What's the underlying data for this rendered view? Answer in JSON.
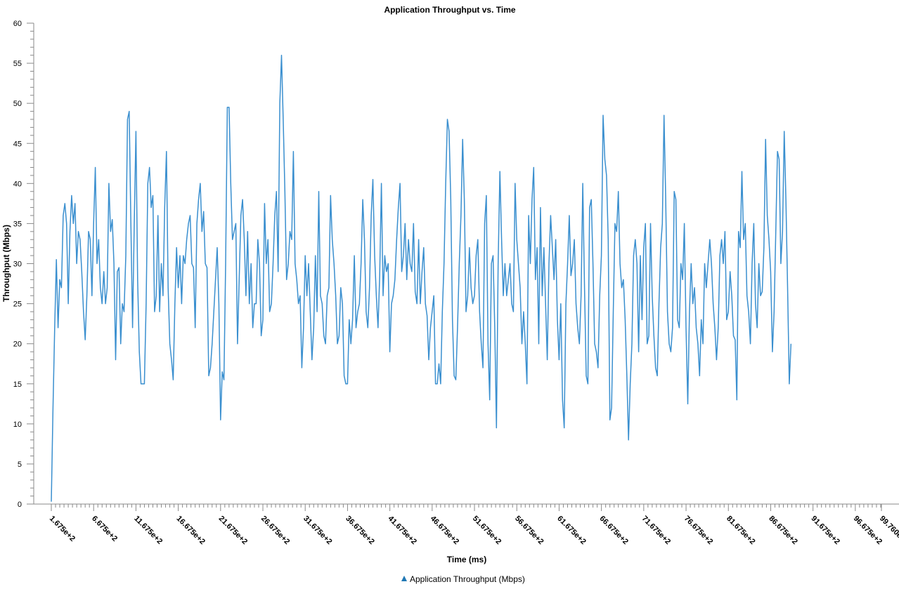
{
  "chart_data": {
    "type": "line",
    "title": "Application Throughput vs. Time",
    "xlabel": "Time (ms)",
    "ylabel": "Throughput (Mbps)",
    "ylim": [
      0,
      60
    ],
    "xlim": [
      167.5,
      9976
    ],
    "yticks": [
      "0",
      "5",
      "10",
      "15",
      "20",
      "25",
      "30",
      "35",
      "40",
      "45",
      "50",
      "55",
      "60"
    ],
    "xticks": [
      "1.675e+2",
      "6.675e+2",
      "11.675e+2",
      "16.675e+2",
      "21.675e+2",
      "26.675e+2",
      "31.675e+2",
      "36.675e+2",
      "41.675e+2",
      "46.675e+2",
      "51.675e+2",
      "56.675e+2",
      "61.675e+2",
      "66.675e+2",
      "71.675e+2",
      "76.675e+2",
      "81.675e+2",
      "86.675e+2",
      "91.675e+2",
      "96.675e+2",
      "99.760e+2"
    ],
    "grid": false,
    "legend_position": "bottom-center",
    "series": [
      {
        "name": "Application Throughput (Mbps)",
        "color": "#3a8fcf",
        "x_start": 167.5,
        "x_step": 20,
        "values": [
          0.3,
          12,
          22,
          30.5,
          22,
          28,
          27,
          36,
          37.5,
          35,
          25,
          34,
          38.5,
          35,
          37.5,
          30,
          34,
          33,
          29,
          24,
          20.5,
          26,
          34,
          33,
          26,
          35,
          42,
          30,
          33,
          27,
          25,
          29,
          25,
          27,
          40,
          34,
          35.5,
          30,
          18,
          29,
          29.5,
          20,
          25,
          24,
          31,
          48,
          49,
          35,
          22,
          35,
          46.5,
          28,
          19,
          15,
          15,
          15,
          25,
          40,
          42,
          37,
          38.5,
          24,
          26,
          36,
          24,
          30,
          26,
          37,
          44,
          27,
          20,
          18,
          15.5,
          25,
          32,
          27,
          31,
          25,
          31,
          30,
          33,
          35,
          36,
          30,
          29.5,
          22,
          35,
          38,
          40,
          34,
          36.5,
          30,
          29.5,
          16,
          17,
          20,
          24,
          28,
          32,
          25,
          10.5,
          16.5,
          15.5,
          30,
          49.5,
          49.5,
          40,
          33,
          34,
          35,
          20,
          28,
          36,
          38,
          33,
          26,
          34,
          25,
          30,
          22,
          25,
          25,
          33,
          30,
          21,
          23,
          37.5,
          30,
          33,
          24,
          25,
          30,
          36,
          39,
          29,
          50,
          56,
          48,
          39,
          28,
          30,
          34,
          33,
          44,
          30,
          28,
          25,
          26,
          17,
          22,
          31,
          26,
          30,
          24,
          18,
          22,
          31,
          24,
          39,
          26,
          25,
          21,
          20,
          26,
          27,
          38.5,
          33,
          30,
          26,
          20,
          21,
          27,
          25,
          16,
          15,
          15,
          23,
          20,
          23,
          31,
          22,
          24,
          25,
          30,
          38,
          33,
          24,
          22,
          27,
          36,
          40.5,
          31,
          26,
          22,
          28.5,
          40,
          26,
          31,
          29,
          30,
          19,
          25,
          26,
          28,
          33,
          37,
          40,
          29,
          31,
          35,
          28,
          33,
          30,
          29,
          35,
          26.5,
          25,
          33,
          25,
          29,
          32,
          25,
          23.5,
          18,
          22,
          24,
          26,
          15,
          15,
          17.5,
          15,
          24,
          30,
          40,
          48,
          46.5,
          38,
          23,
          16,
          15.5,
          22,
          30,
          36,
          45.5,
          38,
          24,
          26,
          32,
          27,
          25,
          26,
          31,
          33,
          24,
          20,
          17,
          35,
          38.5,
          20,
          13,
          30,
          31,
          22,
          9.5,
          30,
          41.5,
          33,
          26,
          30,
          26,
          28,
          30,
          25,
          24,
          40,
          33,
          30,
          27,
          20,
          24,
          20,
          15,
          36,
          30,
          38,
          42,
          28,
          32,
          20,
          37,
          26,
          32,
          25,
          18,
          30,
          36,
          32,
          28,
          33,
          23,
          18,
          25,
          13,
          9.5,
          25,
          30,
          36,
          28.5,
          30,
          33,
          25,
          22,
          20,
          26,
          40,
          27,
          16,
          15,
          37,
          38,
          30,
          20,
          19,
          17,
          26,
          31,
          48.5,
          43,
          41,
          33,
          10.5,
          12,
          24,
          35,
          34,
          39,
          30,
          27,
          28,
          23,
          16,
          8,
          15,
          20,
          31,
          33,
          30,
          19,
          31,
          23,
          32,
          35,
          20,
          21,
          35,
          26,
          21,
          17,
          16,
          25,
          32,
          35,
          48.5,
          38,
          24,
          20,
          19,
          22,
          39,
          38,
          23,
          22,
          30,
          28,
          35,
          22,
          12.5,
          24,
          30,
          25,
          27,
          22,
          20,
          16,
          23,
          20,
          30,
          27,
          30,
          33,
          30,
          25,
          22,
          18,
          22,
          31,
          33,
          30,
          34,
          23,
          24,
          29,
          26,
          21,
          20.5,
          13,
          34,
          32,
          41.5,
          33,
          35,
          26,
          24,
          20,
          30,
          35,
          25,
          22,
          30,
          26,
          26.5,
          32,
          45.5,
          36,
          33,
          29,
          19,
          24,
          34,
          44,
          43,
          30,
          34,
          46.5,
          38,
          27,
          15,
          20
        ]
      }
    ]
  }
}
